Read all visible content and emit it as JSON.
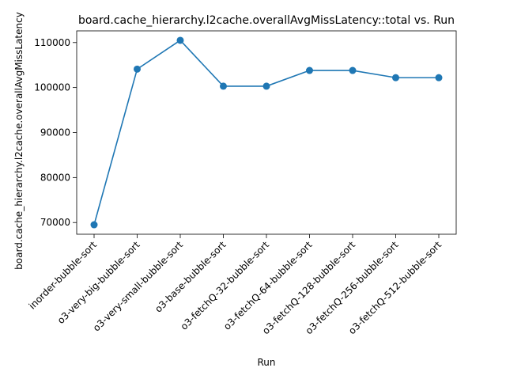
{
  "chart_data": {
    "type": "line",
    "title": "board.cache_hierarchy.l2cache.overallAvgMissLatency::total vs. Run",
    "xlabel": "Run",
    "ylabel": "board.cache_hierarchy.l2cache.overallAvgMissLatency",
    "categories": [
      "inorder-bubble-sort",
      "o3-very-big-bubble-sort",
      "o3-very-small-bubble-sort",
      "o3-base-bubble-sort",
      "o3-fetchQ-32-bubble-sort",
      "o3-fetchQ-64-bubble-sort",
      "o3-fetchQ-128-bubble-sort",
      "o3-fetchQ-256-bubble-sort",
      "o3-fetchQ-512-bubble-sort"
    ],
    "values": [
      69500,
      104100,
      110500,
      100300,
      100300,
      103800,
      103800,
      102200,
      102200
    ],
    "ylim": [
      67400,
      112600
    ],
    "yticks": [
      70000,
      80000,
      90000,
      100000,
      110000
    ],
    "ytick_labels": [
      "70000",
      "80000",
      "90000",
      "100000",
      "110000"
    ],
    "grid": false,
    "marker": "circle",
    "color": "#1f77b4"
  }
}
